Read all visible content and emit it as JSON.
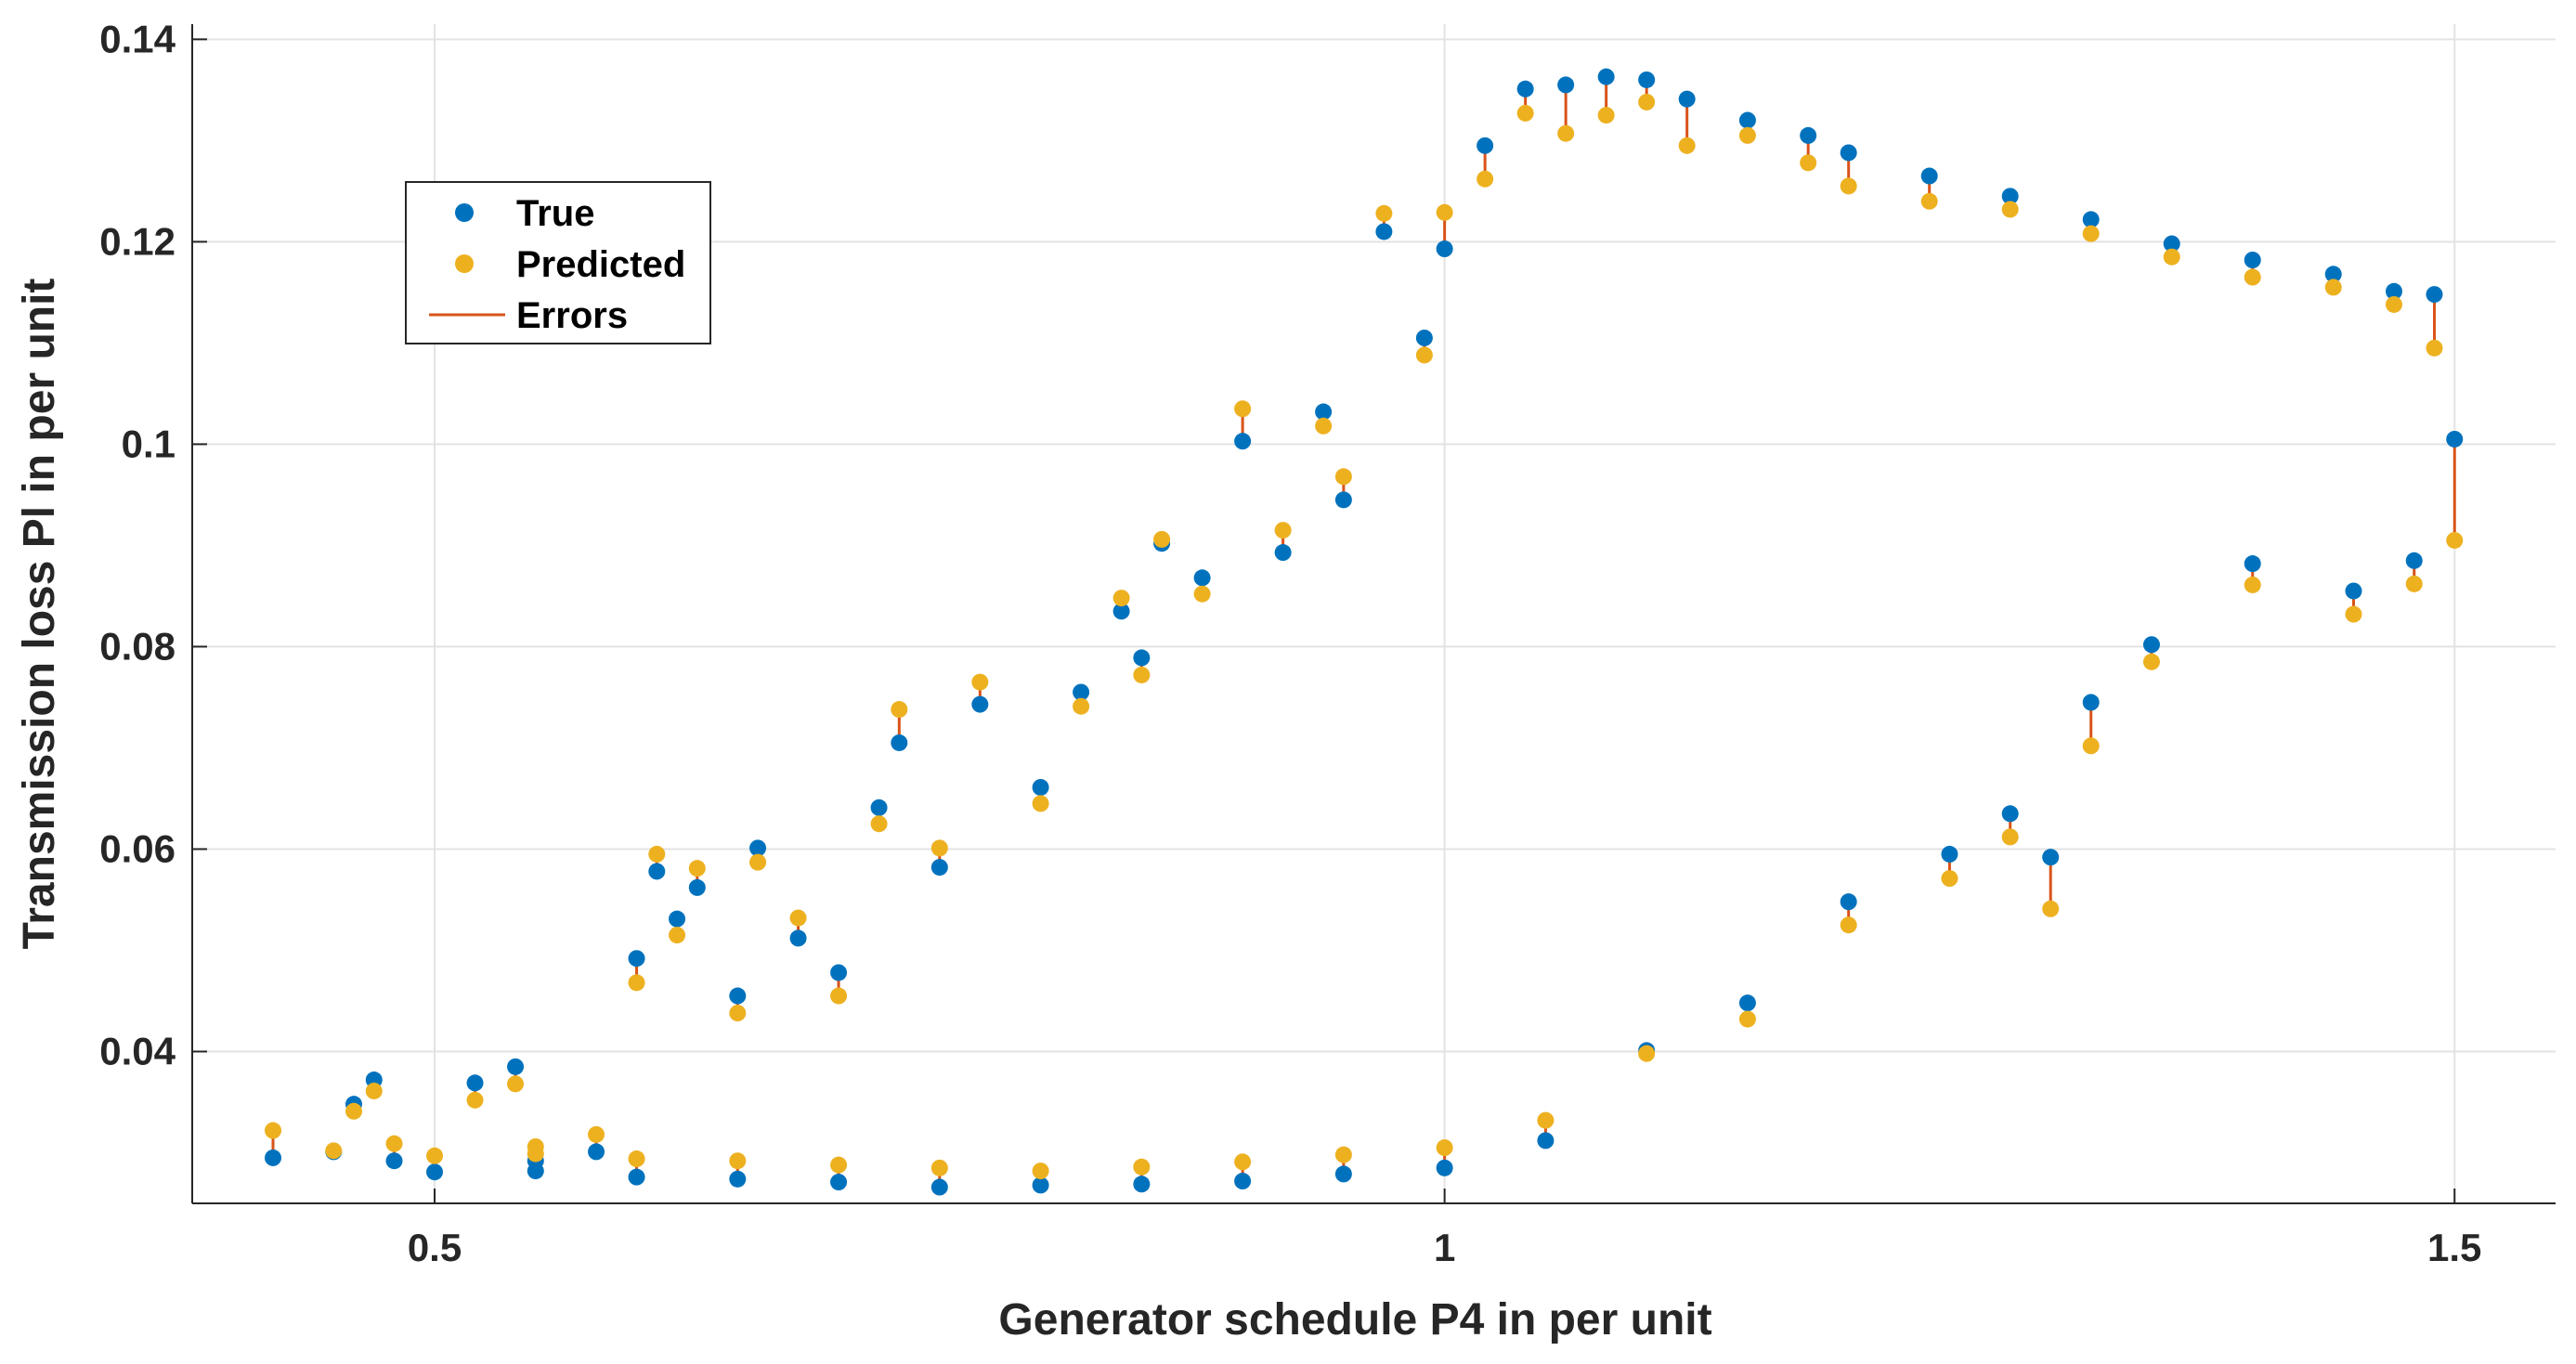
{
  "chart_data": {
    "type": "scatter",
    "title": "",
    "xlabel": "Generator schedule P4 in per unit",
    "ylabel": "Transmission loss Pl in per unit",
    "xlim": [
      0.38,
      1.55
    ],
    "ylim": [
      0.025,
      0.1415
    ],
    "x_ticks": [
      0.5,
      1,
      1.5
    ],
    "x_tick_labels": [
      "0.5",
      "1",
      "1.5"
    ],
    "y_ticks": [
      0.04,
      0.06,
      0.08,
      0.1,
      0.12,
      0.14
    ],
    "y_tick_labels": [
      "0.04",
      "0.06",
      "0.08",
      "0.1",
      "0.12",
      "0.14"
    ],
    "grid": true,
    "legend_position": "top-left",
    "series": [
      {
        "name": "True",
        "kind": "points",
        "color": "#0072BD"
      },
      {
        "name": "Predicted",
        "kind": "points",
        "color": "#EDB120"
      },
      {
        "name": "Errors",
        "kind": "error-lines",
        "color": "#D95319"
      }
    ],
    "points": [
      [
        0.42,
        0.0295,
        0.0322
      ],
      [
        0.45,
        0.0301,
        0.0302
      ],
      [
        0.46,
        0.0348,
        0.0341
      ],
      [
        0.47,
        0.0372,
        0.0361
      ],
      [
        0.48,
        0.0292,
        0.0309
      ],
      [
        0.5,
        0.0281,
        0.0297
      ],
      [
        0.52,
        0.0369,
        0.0352
      ],
      [
        0.54,
        0.0385,
        0.0368
      ],
      [
        0.55,
        0.0292,
        0.0306
      ],
      [
        0.58,
        0.0301,
        0.0318
      ],
      [
        0.6,
        0.0492,
        0.0468
      ],
      [
        0.61,
        0.0578,
        0.0595
      ],
      [
        0.62,
        0.0531,
        0.0515
      ],
      [
        0.63,
        0.0562,
        0.0581
      ],
      [
        0.65,
        0.0455,
        0.0438
      ],
      [
        0.66,
        0.0601,
        0.0587
      ],
      [
        0.68,
        0.0512,
        0.0532
      ],
      [
        0.7,
        0.0478,
        0.0455
      ],
      [
        0.72,
        0.0641,
        0.0625
      ],
      [
        0.73,
        0.0705,
        0.0738
      ],
      [
        0.75,
        0.0582,
        0.0601
      ],
      [
        0.77,
        0.0743,
        0.0765
      ],
      [
        0.8,
        0.0661,
        0.0645
      ],
      [
        0.82,
        0.0755,
        0.0741
      ],
      [
        0.84,
        0.0835,
        0.0848
      ],
      [
        0.85,
        0.0789,
        0.0772
      ],
      [
        0.86,
        0.0902,
        0.0906
      ],
      [
        0.88,
        0.0868,
        0.0852
      ],
      [
        0.9,
        0.1003,
        0.1035
      ],
      [
        0.92,
        0.0893,
        0.0915
      ],
      [
        0.94,
        0.1032,
        0.1018
      ],
      [
        0.95,
        0.0945,
        0.0968
      ],
      [
        0.97,
        0.121,
        0.1228
      ],
      [
        0.99,
        0.1105,
        0.1088
      ],
      [
        1.0,
        0.1193,
        0.1229
      ],
      [
        1.02,
        0.1295,
        0.1262
      ],
      [
        1.04,
        0.1351,
        0.1327
      ],
      [
        1.06,
        0.1355,
        0.1307
      ],
      [
        1.08,
        0.1363,
        0.1325
      ],
      [
        1.1,
        0.136,
        0.1338
      ],
      [
        1.12,
        0.1341,
        0.1295
      ],
      [
        1.15,
        0.132,
        0.1305
      ],
      [
        1.18,
        0.1305,
        0.1278
      ],
      [
        1.2,
        0.1288,
        0.1255
      ],
      [
        1.24,
        0.1265,
        0.124
      ],
      [
        1.28,
        0.1245,
        0.1232
      ],
      [
        1.32,
        0.1222,
        0.1208
      ],
      [
        1.36,
        0.1198,
        0.1185
      ],
      [
        1.4,
        0.1182,
        0.1165
      ],
      [
        1.44,
        0.1168,
        0.1155
      ],
      [
        1.47,
        0.1151,
        0.1138
      ],
      [
        1.49,
        0.1148,
        0.1095
      ],
      [
        1.5,
        0.1005,
        0.0905
      ],
      [
        1.48,
        0.0885,
        0.0862
      ],
      [
        1.45,
        0.0855,
        0.0832
      ],
      [
        1.4,
        0.0882,
        0.0861
      ],
      [
        1.35,
        0.0802,
        0.0785
      ],
      [
        1.32,
        0.0745,
        0.0702
      ],
      [
        1.28,
        0.0635,
        0.0612
      ],
      [
        1.3,
        0.0592,
        0.0541
      ],
      [
        1.25,
        0.0595,
        0.0571
      ],
      [
        1.2,
        0.0548,
        0.0525
      ],
      [
        1.15,
        0.0448,
        0.0432
      ],
      [
        1.1,
        0.0401,
        0.0398
      ],
      [
        1.05,
        0.0312,
        0.0332
      ],
      [
        1.0,
        0.0285,
        0.0305
      ],
      [
        0.95,
        0.0279,
        0.0298
      ],
      [
        0.9,
        0.0272,
        0.0291
      ],
      [
        0.85,
        0.0269,
        0.0286
      ],
      [
        0.8,
        0.0268,
        0.0282
      ],
      [
        0.75,
        0.0266,
        0.0285
      ],
      [
        0.7,
        0.0271,
        0.0288
      ],
      [
        0.65,
        0.0274,
        0.0292
      ],
      [
        0.6,
        0.0276,
        0.0294
      ],
      [
        0.55,
        0.0282,
        0.0299
      ]
    ]
  }
}
